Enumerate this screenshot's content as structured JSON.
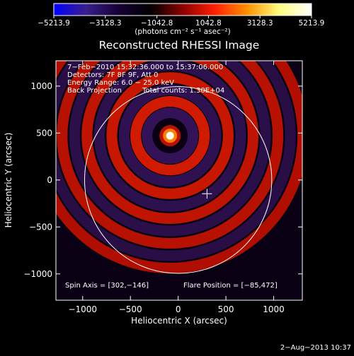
{
  "chart_data": {
    "type": "heatmap",
    "title": "Reconstructed RHESSI Image",
    "xlabel": "Heliocentric X (arcsec)",
    "ylabel": "Heliocentric Y (arcsec)",
    "xlim": [
      -1280,
      1300
    ],
    "ylim": [
      -1280,
      1270
    ],
    "xticks": [
      -1000,
      -500,
      0,
      500,
      1000
    ],
    "yticks": [
      -1000,
      -500,
      0,
      500,
      1000
    ],
    "xtick_labels": [
      "−1000",
      "−500",
      "0",
      "500",
      "1000"
    ],
    "ytick_labels": [
      "−1000",
      "−500",
      "0",
      "500",
      "1000"
    ],
    "colorbar": {
      "ticks": [
        -5213.9,
        -3128.3,
        -1042.8,
        1042.8,
        3128.3,
        5213.9
      ],
      "tick_labels": [
        "−5213.9",
        "−3128.3",
        "−1042.8",
        "1042.8",
        "3128.3",
        "5213.9"
      ],
      "unit": "(photons cm⁻² s⁻¹ asec⁻²)",
      "colors": [
        "#0000ff",
        "#3a1f8c",
        "#160035",
        "#000000",
        "#8c0000",
        "#ff2000",
        "#ff9000",
        "#ffff80",
        "#ffffff"
      ]
    },
    "source": {
      "x": -85,
      "y": 472,
      "peak": 5213.9
    },
    "solar_disk": {
      "center": [
        0,
        0
      ],
      "radius": 980
    },
    "spin_axis": {
      "x": 302,
      "y": -146
    },
    "rings": [
      {
        "r": 240,
        "value": -2400
      },
      {
        "r": 360,
        "value": 2200
      },
      {
        "r": 480,
        "value": -2200
      },
      {
        "r": 610,
        "value": 2100
      },
      {
        "r": 740,
        "value": -2100
      },
      {
        "r": 870,
        "value": 2000
      },
      {
        "r": 1000,
        "value": -2000
      },
      {
        "r": 1130,
        "value": 1900
      },
      {
        "r": 1260,
        "value": -1900
      },
      {
        "r": 1390,
        "value": 1800
      }
    ],
    "annotations": [
      "7−Feb−2010 15:32:36.000 to 15:37:06.000",
      "Detectors: 7F 8F 9F, Att 0",
      "Energy Range: 6.0 − 25.0 keV",
      "Back Projection",
      "Total counts: 1.30E+04",
      "Spin Axis = [302,−146]",
      "Flare Position = [−85,472]"
    ],
    "timestamp": "2−Aug−2013 10:37"
  }
}
